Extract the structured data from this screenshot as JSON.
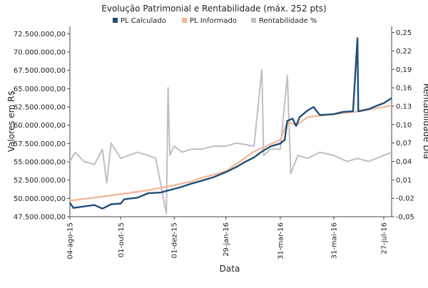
{
  "chart_data": {
    "type": "line",
    "title": "Evolução Patrimonial e Rentabilidade (máx. 252 pts)",
    "xlabel": "Data",
    "ylabel": "Valores em R$",
    "y2label": "Rentabilidade Dia",
    "legend_position": "top",
    "grid": false,
    "x_range": [
      "2015-08-04",
      "2016-08-05"
    ],
    "x_ticks": [
      {
        "label": "04-ago-15",
        "date": "2015-08-04"
      },
      {
        "label": "01-out-15",
        "date": "2015-10-01"
      },
      {
        "label": "01-dez-15",
        "date": "2015-12-01"
      },
      {
        "label": "29-jan-16",
        "date": "2016-01-29"
      },
      {
        "label": "31-mar-16",
        "date": "2016-03-31"
      },
      {
        "label": "31-mai-16",
        "date": "2016-05-31"
      },
      {
        "label": "27-jul-16",
        "date": "2016-07-27"
      }
    ],
    "ylim": [
      47500000,
      73500000
    ],
    "y_ticks": [
      {
        "label": "47.500.000,00",
        "value": 47500000
      },
      {
        "label": "50.000.000,00",
        "value": 50000000
      },
      {
        "label": "52.500.000,00",
        "value": 52500000
      },
      {
        "label": "55.000.000,00",
        "value": 55000000
      },
      {
        "label": "57.500.000,00",
        "value": 57500000
      },
      {
        "label": "60.000.000,00",
        "value": 60000000
      },
      {
        "label": "62.500.000,00",
        "value": 62500000
      },
      {
        "label": "65.000.000,00",
        "value": 65000000
      },
      {
        "label": "67.500.000,00",
        "value": 67500000
      },
      {
        "label": "70.000.000,00",
        "value": 70000000
      },
      {
        "label": "72.500.000,00",
        "value": 72500000
      }
    ],
    "y2lim": [
      -0.05,
      0.26
    ],
    "y2_ticks": [
      {
        "label": "-0,05",
        "value": -0.05
      },
      {
        "label": "-0,02",
        "value": -0.02
      },
      {
        "label": "0,01",
        "value": 0.01
      },
      {
        "label": "0,04",
        "value": 0.04
      },
      {
        "label": "0,07",
        "value": 0.07
      },
      {
        "label": "0,10",
        "value": 0.1
      },
      {
        "label": "0,13",
        "value": 0.13
      },
      {
        "label": "0,16",
        "value": 0.16
      },
      {
        "label": "0,19",
        "value": 0.19
      },
      {
        "label": "0,22",
        "value": 0.22
      },
      {
        "label": "0,25",
        "value": 0.25
      }
    ],
    "series": [
      {
        "name": "PL Calculado",
        "color": "#1f4e79",
        "axis": "left",
        "points": [
          [
            "2015-08-04",
            49400000
          ],
          [
            "2015-08-08",
            48700000
          ],
          [
            "2015-08-20",
            48900000
          ],
          [
            "2015-09-01",
            49100000
          ],
          [
            "2015-09-10",
            48600000
          ],
          [
            "2015-09-20",
            49200000
          ],
          [
            "2015-10-01",
            49300000
          ],
          [
            "2015-10-05",
            49900000
          ],
          [
            "2015-10-20",
            50100000
          ],
          [
            "2015-11-01",
            50700000
          ],
          [
            "2015-11-15",
            50800000
          ],
          [
            "2015-12-01",
            51300000
          ],
          [
            "2015-12-10",
            51600000
          ],
          [
            "2015-12-20",
            52000000
          ],
          [
            "2016-01-01",
            52400000
          ],
          [
            "2016-01-15",
            52900000
          ],
          [
            "2016-01-29",
            53600000
          ],
          [
            "2016-02-10",
            54300000
          ],
          [
            "2016-02-20",
            55000000
          ],
          [
            "2016-03-01",
            55600000
          ],
          [
            "2016-03-10",
            56400000
          ],
          [
            "2016-03-20",
            57100000
          ],
          [
            "2016-03-31",
            57500000
          ],
          [
            "2016-04-05",
            58000000
          ],
          [
            "2016-04-08",
            60600000
          ],
          [
            "2016-04-14",
            60900000
          ],
          [
            "2016-04-18",
            59900000
          ],
          [
            "2016-04-22",
            61100000
          ],
          [
            "2016-05-01",
            62000000
          ],
          [
            "2016-05-08",
            62500000
          ],
          [
            "2016-05-15",
            61400000
          ],
          [
            "2016-05-31",
            61500000
          ],
          [
            "2016-06-10",
            61800000
          ],
          [
            "2016-06-22",
            61900000
          ],
          [
            "2016-06-27",
            71900000
          ],
          [
            "2016-06-28",
            61900000
          ],
          [
            "2016-07-10",
            62200000
          ],
          [
            "2016-07-20",
            62700000
          ],
          [
            "2016-07-27",
            63000000
          ],
          [
            "2016-08-05",
            63700000
          ]
        ]
      },
      {
        "name": "PL Informado",
        "color": "#f4b89a",
        "axis": "left",
        "points": [
          [
            "2015-08-04",
            49700000
          ],
          [
            "2015-09-01",
            50100000
          ],
          [
            "2015-10-01",
            50600000
          ],
          [
            "2015-11-01",
            51100000
          ],
          [
            "2015-12-01",
            51800000
          ],
          [
            "2015-12-20",
            52300000
          ],
          [
            "2016-01-01",
            52800000
          ],
          [
            "2016-01-29",
            53700000
          ],
          [
            "2016-03-01",
            56400000
          ],
          [
            "2016-03-31",
            58000000
          ],
          [
            "2016-04-08",
            60500000
          ],
          [
            "2016-04-18",
            60000000
          ],
          [
            "2016-05-01",
            61100000
          ],
          [
            "2016-05-31",
            61500000
          ],
          [
            "2016-06-30",
            61900000
          ],
          [
            "2016-08-05",
            62700000
          ]
        ]
      },
      {
        "name": "Rentabilidade %",
        "color": "#c3bcc4",
        "axis": "right",
        "points": [
          [
            "2015-08-04",
            0.04
          ],
          [
            "2015-08-10",
            0.055
          ],
          [
            "2015-08-20",
            0.04
          ],
          [
            "2015-09-01",
            0.035
          ],
          [
            "2015-09-10",
            0.06
          ],
          [
            "2015-09-15",
            0.005
          ],
          [
            "2015-09-20",
            0.07
          ],
          [
            "2015-10-01",
            0.045
          ],
          [
            "2015-10-10",
            0.05
          ],
          [
            "2015-10-20",
            0.055
          ],
          [
            "2015-11-01",
            0.05
          ],
          [
            "2015-11-10",
            0.045
          ],
          [
            "2015-11-22",
            -0.045
          ],
          [
            "2015-11-24",
            0.16
          ],
          [
            "2015-11-26",
            0.05
          ],
          [
            "2015-12-01",
            0.065
          ],
          [
            "2015-12-10",
            0.055
          ],
          [
            "2015-12-20",
            0.06
          ],
          [
            "2016-01-01",
            0.06
          ],
          [
            "2016-01-15",
            0.065
          ],
          [
            "2016-01-29",
            0.065
          ],
          [
            "2016-02-10",
            0.07
          ],
          [
            "2016-03-01",
            0.065
          ],
          [
            "2016-03-10",
            0.19
          ],
          [
            "2016-03-12",
            0.05
          ],
          [
            "2016-03-20",
            0.06
          ],
          [
            "2016-03-31",
            0.06
          ],
          [
            "2016-04-08",
            0.18
          ],
          [
            "2016-04-12",
            0.02
          ],
          [
            "2016-04-20",
            0.05
          ],
          [
            "2016-05-01",
            0.045
          ],
          [
            "2016-05-15",
            0.055
          ],
          [
            "2016-05-31",
            0.05
          ],
          [
            "2016-06-15",
            0.04
          ],
          [
            "2016-06-27",
            0.045
          ],
          [
            "2016-07-10",
            0.04
          ],
          [
            "2016-07-27",
            0.05
          ],
          [
            "2016-08-05",
            0.055
          ]
        ]
      }
    ]
  }
}
